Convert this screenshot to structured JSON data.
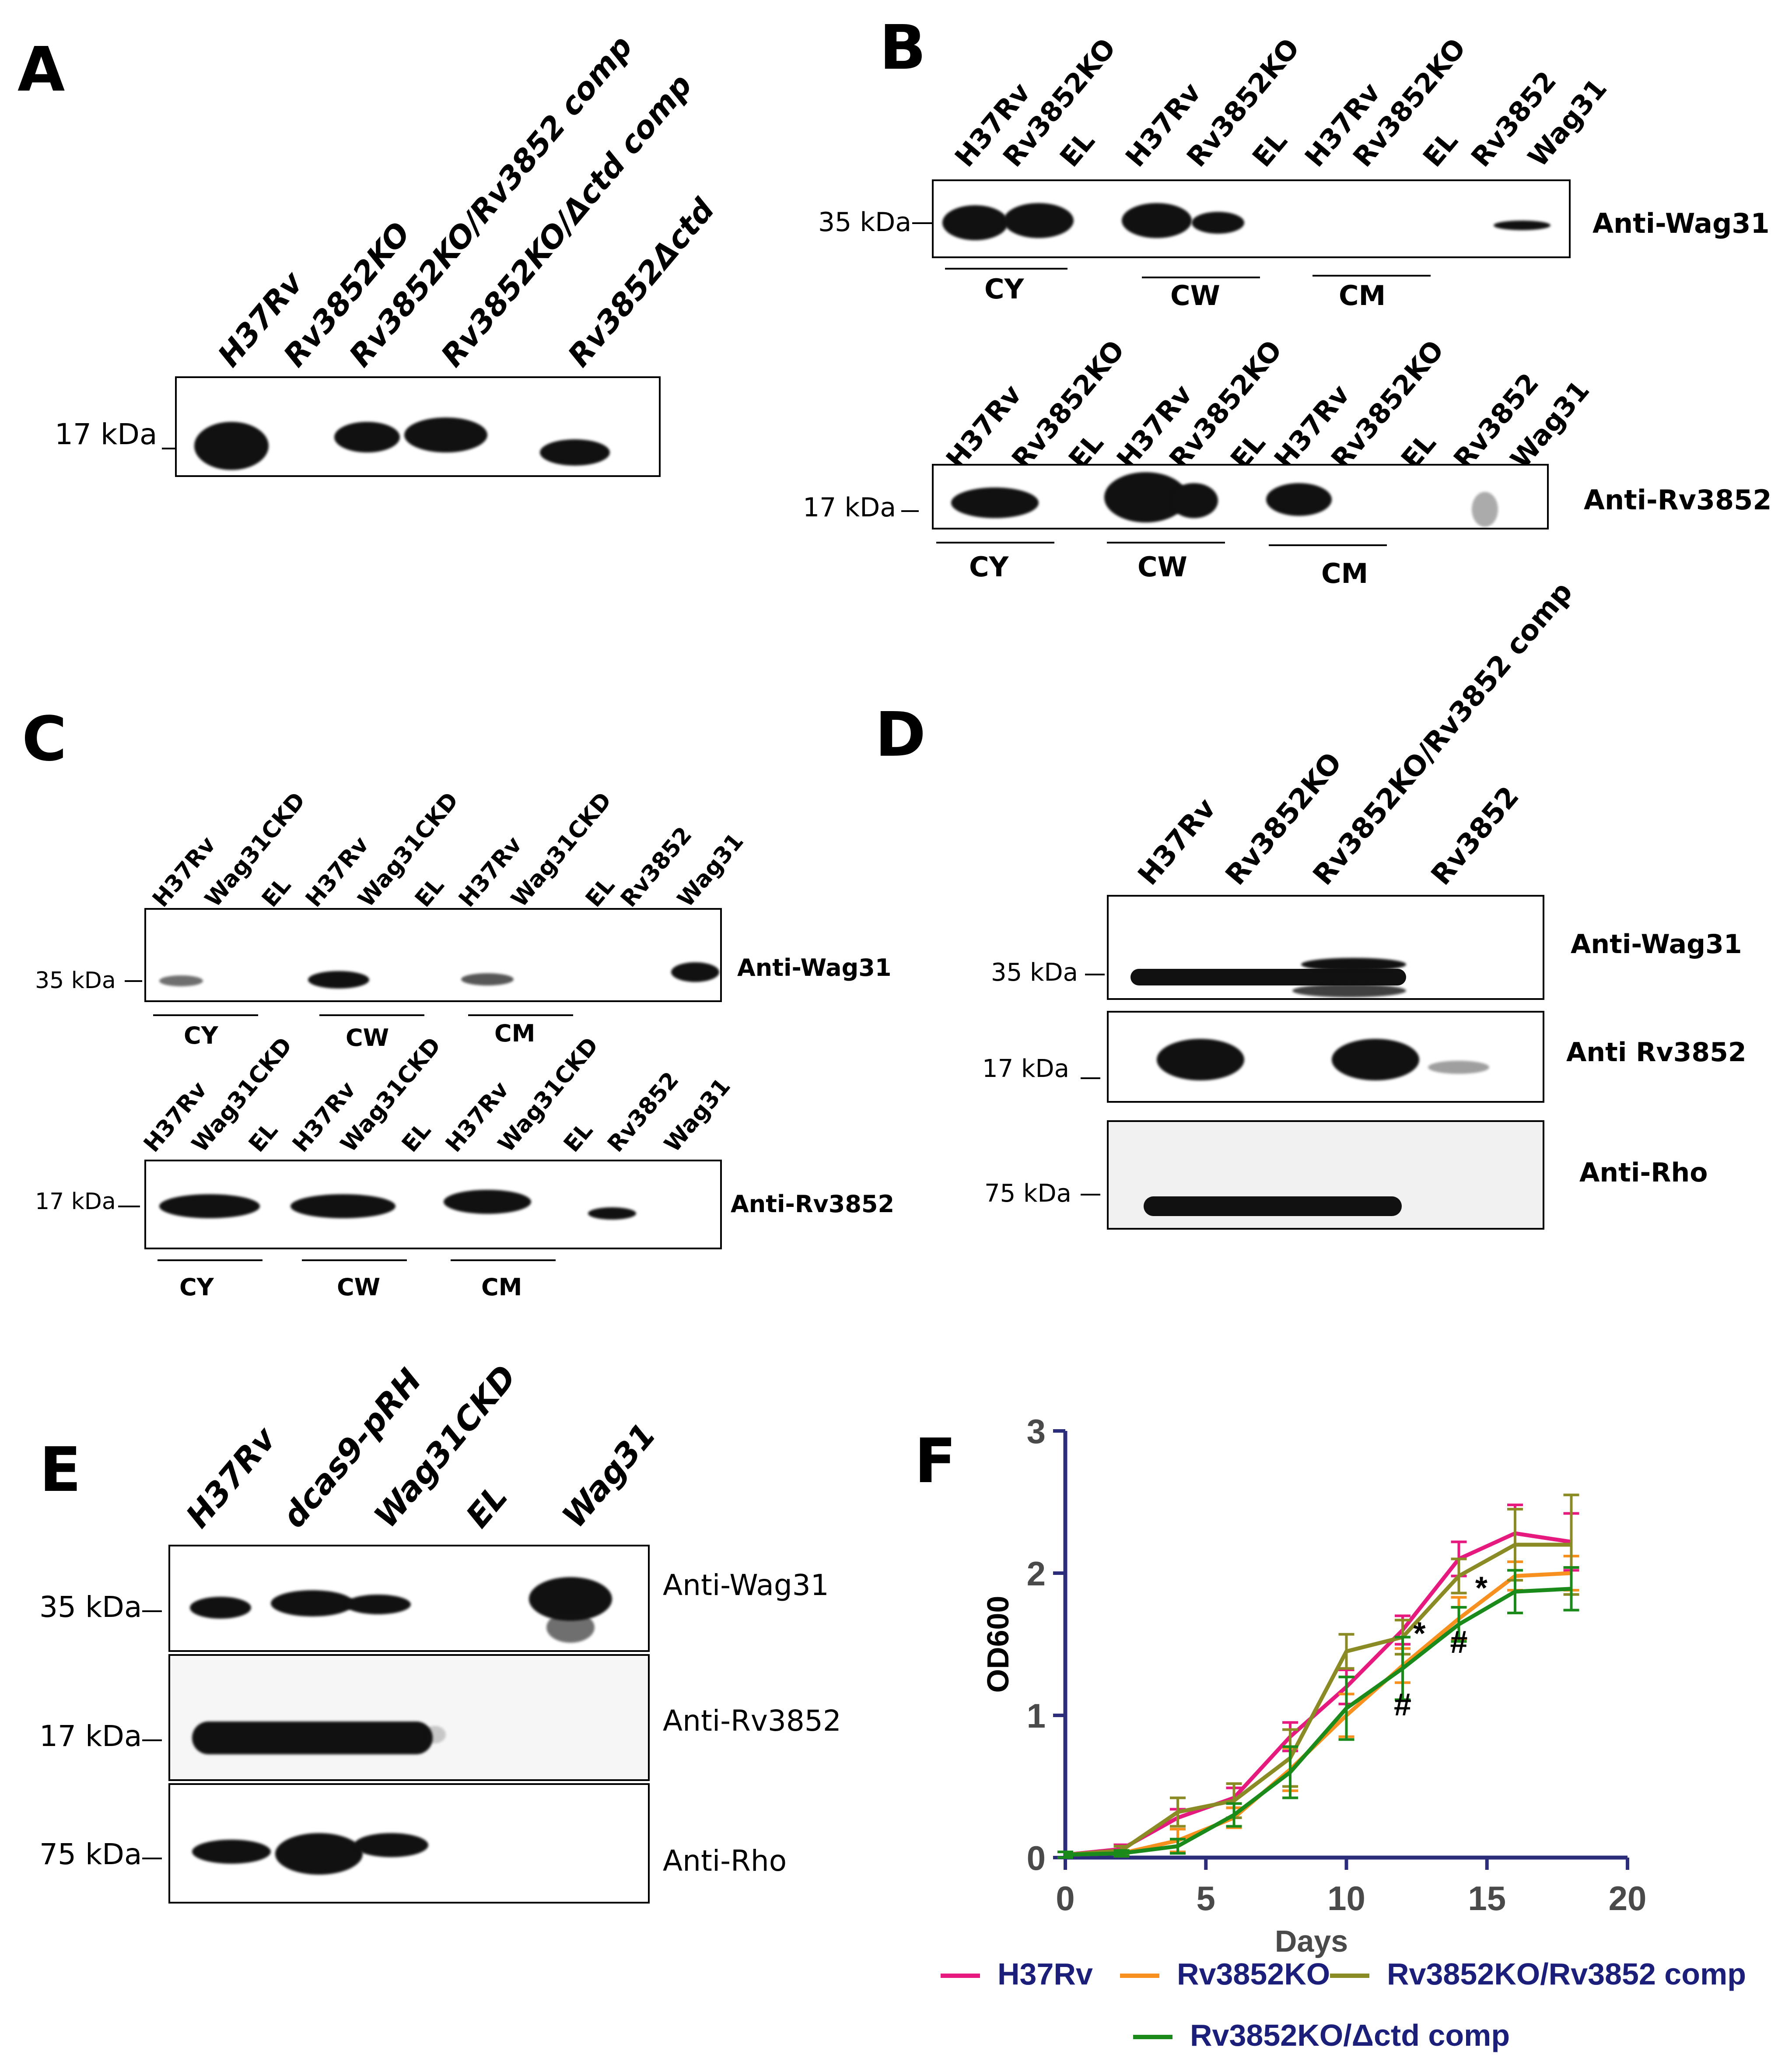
{
  "panels": {
    "A": {
      "letter": "A",
      "lanes": [
        "H37Rv",
        "Rv3852KO",
        "Rv3852KO/Rv3852 comp",
        "Rv3852KO/Δctd comp",
        "Rv3852Δctd"
      ],
      "marker": "17 kDa"
    },
    "B": {
      "letter": "B",
      "lanes": [
        "H37Rv",
        "Rv3852KO",
        "EL",
        "H37Rv",
        "Rv3852KO",
        "EL",
        "H37Rv",
        "Rv3852KO",
        "EL",
        "Rv3852",
        "Wag31"
      ],
      "blot1": {
        "marker": "35 kDa",
        "antibody": "Anti-Wag31"
      },
      "blot2": {
        "marker": "17 kDa",
        "antibody": "Anti-Rv3852"
      },
      "fractions": [
        "CY",
        "CW",
        "CM"
      ]
    },
    "C": {
      "letter": "C",
      "lanes": [
        "H37Rv",
        "Wag31CKD",
        "EL",
        "H37Rv",
        "Wag31CKD",
        "EL",
        "H37Rv",
        "Wag31CKD",
        "EL",
        "Rv3852",
        "Wag31"
      ],
      "blot1": {
        "marker": "35 kDa",
        "antibody": "Anti-Wag31"
      },
      "blot2": {
        "marker": "17 kDa",
        "antibody": "Anti-Rv3852"
      },
      "fractions": [
        "CY",
        "CW",
        "CM"
      ]
    },
    "D": {
      "letter": "D",
      "lanes": [
        "H37Rv",
        "Rv3852KO",
        "Rv3852KO/Rv3852 comp",
        "Rv3852"
      ],
      "blots": [
        {
          "marker": "35 kDa",
          "antibody": "Anti-Wag31"
        },
        {
          "marker": "17 kDa",
          "antibody": "Anti Rv3852"
        },
        {
          "marker": "75 kDa",
          "antibody": "Anti-Rho"
        }
      ]
    },
    "E": {
      "letter": "E",
      "lanes": [
        "H37Rv",
        "dcas9-pRH",
        "Wag31CKD",
        "EL",
        "Wag31"
      ],
      "blots": [
        {
          "marker": "35 kDa",
          "antibody": "Anti-Wag31"
        },
        {
          "marker": "17 kDa",
          "antibody": "Anti-Rv3852"
        },
        {
          "marker": "75 kDa",
          "antibody": "Anti-Rho"
        }
      ]
    },
    "F": {
      "letter": "F"
    }
  },
  "chart_data": {
    "type": "line",
    "title": "",
    "xlabel": "Days",
    "ylabel": "OD600",
    "xlim": [
      0,
      20
    ],
    "ylim": [
      0,
      3
    ],
    "xticks": [
      "0",
      "5",
      "10",
      "15",
      "20"
    ],
    "yticks": [
      "0",
      "1",
      "2",
      "3"
    ],
    "x": [
      0,
      2,
      4,
      6,
      8,
      10,
      12,
      14,
      16,
      18
    ],
    "series": [
      {
        "name": "H37Rv",
        "color": "#e6197f",
        "values": [
          0.02,
          0.06,
          0.28,
          0.42,
          0.85,
          1.2,
          1.6,
          2.1,
          2.28,
          2.22
        ],
        "errors": [
          0.02,
          0.03,
          0.06,
          0.07,
          0.1,
          0.12,
          0.1,
          0.12,
          0.2,
          0.2
        ]
      },
      {
        "name": "Rv3852KO",
        "color": "#f7901e",
        "values": [
          0.02,
          0.03,
          0.12,
          0.28,
          0.62,
          1.0,
          1.35,
          1.68,
          1.98,
          2.0
        ],
        "errors": [
          0.02,
          0.02,
          0.08,
          0.07,
          0.15,
          0.15,
          0.12,
          0.15,
          0.1,
          0.12
        ]
      },
      {
        "name": "Rv3852KO/Rv3852 comp",
        "color": "#8b8b25",
        "values": [
          0.02,
          0.05,
          0.32,
          0.4,
          0.7,
          1.45,
          1.55,
          1.98,
          2.2,
          2.2
        ],
        "errors": [
          0.02,
          0.03,
          0.1,
          0.12,
          0.2,
          0.12,
          0.12,
          0.12,
          0.25,
          0.35
        ]
      },
      {
        "name": "Rv3852KO/Δctd comp",
        "color": "#1a8a1a",
        "values": [
          0.02,
          0.03,
          0.08,
          0.3,
          0.6,
          1.05,
          1.33,
          1.64,
          1.87,
          1.89
        ],
        "errors": [
          0.02,
          0.02,
          0.05,
          0.08,
          0.18,
          0.22,
          0.22,
          0.12,
          0.15,
          0.15
        ]
      }
    ],
    "annotations": [
      {
        "text": "*",
        "x": 12.6,
        "y": 1.5
      },
      {
        "text": "*",
        "x": 14.8,
        "y": 1.82
      },
      {
        "text": "#",
        "x": 14.0,
        "y": 1.44
      },
      {
        "text": "#",
        "x": 12.0,
        "y": 1.0
      }
    ],
    "legend": [
      "H37Rv",
      "Rv3852KO",
      "Rv3852KO/Rv3852 comp",
      "Rv3852KO/Δctd comp"
    ]
  }
}
